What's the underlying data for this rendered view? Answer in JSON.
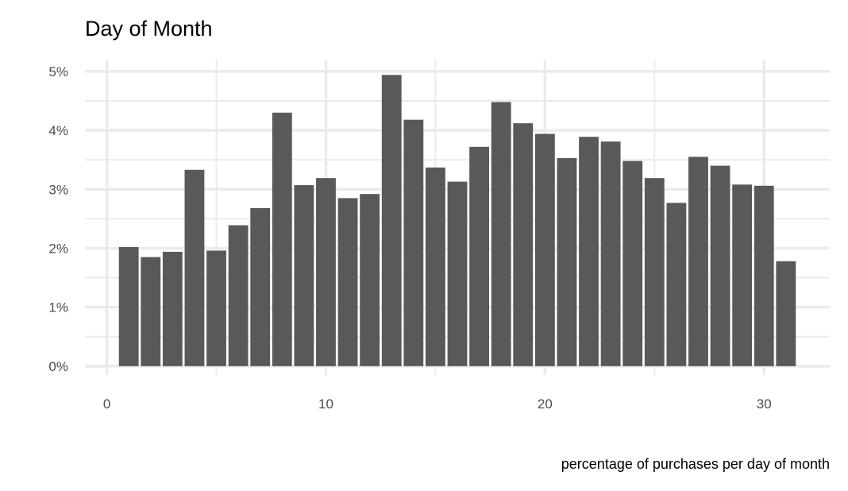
{
  "chart_data": {
    "type": "bar",
    "title": "Day of Month",
    "xlabel": "percentage of purchases per day of month",
    "ylabel": "",
    "x": [
      1,
      2,
      3,
      4,
      5,
      6,
      7,
      8,
      9,
      10,
      11,
      12,
      13,
      14,
      15,
      16,
      17,
      18,
      19,
      20,
      21,
      22,
      23,
      24,
      25,
      26,
      27,
      28,
      29,
      30,
      31
    ],
    "values": [
      2.02,
      1.85,
      1.94,
      3.33,
      1.96,
      2.39,
      2.68,
      4.3,
      3.07,
      3.19,
      2.85,
      2.92,
      4.94,
      4.18,
      3.37,
      3.13,
      3.72,
      4.48,
      4.12,
      3.94,
      3.53,
      3.89,
      3.81,
      3.48,
      3.19,
      2.77,
      3.55,
      3.4,
      3.08,
      3.06,
      1.78
    ],
    "xlim": [
      -1,
      33
    ],
    "ylim": [
      -0.15,
      5.2
    ],
    "x_ticks": [
      0,
      10,
      20,
      30
    ],
    "x_tick_labels": [
      "0",
      "10",
      "20",
      "30"
    ],
    "y_ticks": [
      0,
      1,
      2,
      3,
      4,
      5
    ],
    "y_tick_labels": [
      "0%",
      "1%",
      "2%",
      "3%",
      "4%",
      "5%"
    ],
    "bar_color": "#595959",
    "grid": true,
    "grid_color": "#ebebeb",
    "legend": "none"
  }
}
